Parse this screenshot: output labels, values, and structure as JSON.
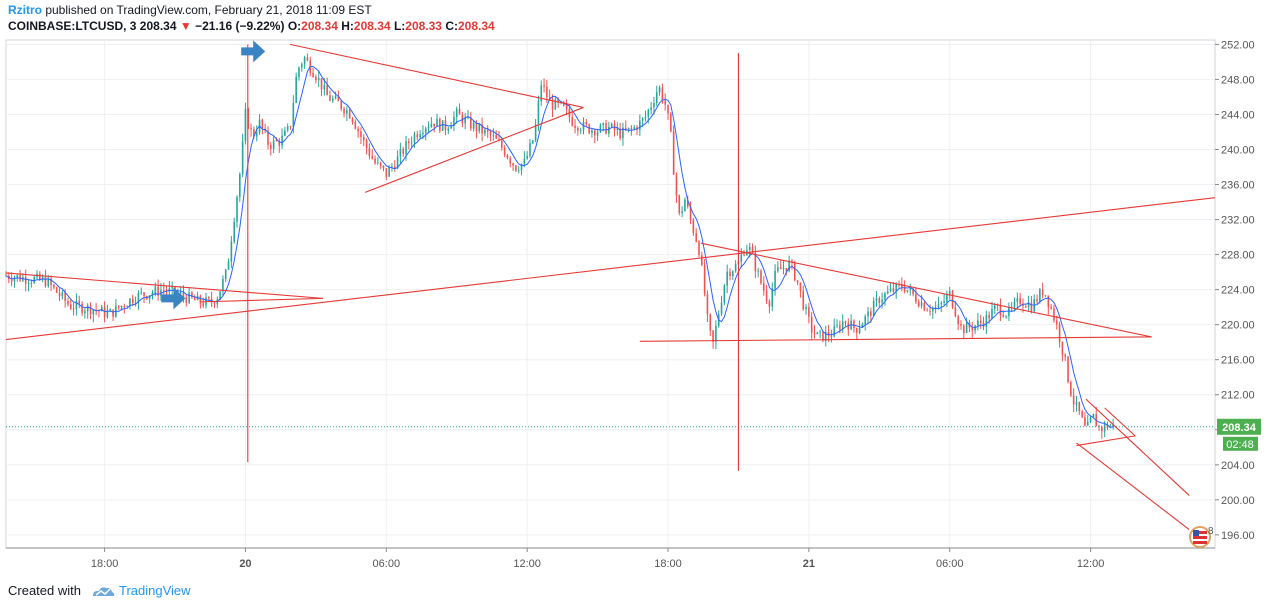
{
  "header": {
    "author": "Rzitro",
    "published_text": " published on TradingView.com, February 21, 2018 11:09 EST",
    "symbol": "COINBASE:LTCUSD, 3",
    "last": "208.34",
    "change_arrow": "▼",
    "change": "−21.16 (−9.22%)",
    "o_label": "O:",
    "o_value": "208.34",
    "h_label": "H:",
    "h_value": "208.34",
    "l_label": "L:",
    "l_value": "208.33",
    "c_label": "C:",
    "c_value": "208.34"
  },
  "footer": {
    "created_with": "Created with",
    "brand": "TradingView"
  },
  "colors": {
    "up": "#26a69a",
    "down": "#ef5350",
    "ma": "#2962ff",
    "drawing": "#e53935",
    "arrow": "#3b84c4",
    "price_badge": "#4caf50",
    "dotted": "#26a69a"
  },
  "chart_data": {
    "type": "candlestick",
    "symbol": "COINBASE:LTCUSD",
    "interval_minutes": 3,
    "yaxis": {
      "ticks": [
        "252.00",
        "248.00",
        "244.00",
        "240.00",
        "236.00",
        "232.00",
        "228.00",
        "224.00",
        "220.00",
        "216.00",
        "212.00",
        "208.00",
        "204.00",
        "200.00",
        "196.00"
      ],
      "range": [
        194.5,
        252.5
      ]
    },
    "xaxis": {
      "ticks": [
        {
          "label": "18:00",
          "h": 18
        },
        {
          "label": "20",
          "h": 24
        },
        {
          "label": "06:00",
          "h": 30
        },
        {
          "label": "12:00",
          "h": 36
        },
        {
          "label": "18:00",
          "h": 42
        },
        {
          "label": "21",
          "h": 48
        },
        {
          "label": "06:00",
          "h": 54
        },
        {
          "label": "12:00",
          "h": 60
        }
      ],
      "range_hours": [
        13.8,
        65.3
      ]
    },
    "current_price": "208.34",
    "countdown": "02:48",
    "price_path": [
      [
        13.8,
        225.6
      ],
      [
        15.5,
        225.0
      ],
      [
        16.5,
        222.2
      ],
      [
        17.5,
        221.8
      ],
      [
        18.2,
        221.2
      ],
      [
        19.3,
        223.2
      ],
      [
        20.5,
        224.0
      ],
      [
        21.3,
        223.3
      ],
      [
        22.0,
        222.6
      ],
      [
        22.5,
        222.5
      ],
      [
        22.8,
        223.2
      ],
      [
        23.2,
        226.0
      ],
      [
        23.5,
        232.0
      ],
      [
        23.8,
        238.0
      ],
      [
        24.0,
        244.0
      ],
      [
        24.3,
        241.5
      ],
      [
        24.6,
        243.0
      ],
      [
        25.0,
        240.5
      ],
      [
        25.5,
        241.0
      ],
      [
        25.9,
        242.5
      ],
      [
        26.2,
        249.0
      ],
      [
        26.5,
        250.5
      ],
      [
        27.0,
        248.5
      ],
      [
        27.5,
        246.0
      ],
      [
        28.0,
        245.2
      ],
      [
        28.5,
        244.0
      ],
      [
        29.0,
        241.0
      ],
      [
        29.5,
        238.5
      ],
      [
        30.0,
        237.2
      ],
      [
        30.5,
        239.0
      ],
      [
        31.0,
        241.0
      ],
      [
        31.5,
        242.5
      ],
      [
        32.0,
        243.2
      ],
      [
        32.5,
        242.5
      ],
      [
        33.0,
        244.0
      ],
      [
        33.5,
        243.0
      ],
      [
        34.0,
        242.2
      ],
      [
        34.5,
        241.5
      ],
      [
        35.0,
        240.0
      ],
      [
        35.5,
        238.0
      ],
      [
        35.9,
        238.5
      ],
      [
        36.3,
        241.5
      ],
      [
        36.6,
        247.5
      ],
      [
        37.0,
        245.2
      ],
      [
        37.5,
        244.8
      ],
      [
        38.0,
        243.0
      ],
      [
        38.5,
        242.5
      ],
      [
        39.0,
        242.2
      ],
      [
        39.5,
        242.5
      ],
      [
        40.0,
        241.8
      ],
      [
        40.5,
        242.3
      ],
      [
        41.0,
        243.5
      ],
      [
        41.3,
        245.2
      ],
      [
        41.6,
        247.2
      ],
      [
        41.9,
        245.0
      ],
      [
        42.1,
        242.0
      ],
      [
        42.3,
        236.0
      ],
      [
        42.5,
        232.0
      ],
      [
        42.7,
        234.5
      ],
      [
        43.0,
        231.5
      ],
      [
        43.3,
        229.0
      ],
      [
        43.5,
        225.0
      ],
      [
        43.7,
        220.0
      ],
      [
        43.9,
        217.5
      ],
      [
        44.2,
        222.0
      ],
      [
        44.5,
        226.0
      ],
      [
        44.8,
        226.5
      ],
      [
        45.0,
        227.0
      ],
      [
        45.3,
        229.0
      ],
      [
        45.5,
        228.5
      ],
      [
        45.8,
        226.0
      ],
      [
        46.0,
        224.5
      ],
      [
        46.3,
        222.5
      ],
      [
        46.6,
        226.0
      ],
      [
        46.9,
        226.5
      ],
      [
        47.2,
        227.0
      ],
      [
        47.5,
        225.0
      ],
      [
        47.8,
        222.0
      ],
      [
        48.1,
        219.5
      ],
      [
        48.4,
        218.5
      ],
      [
        48.7,
        218.8
      ],
      [
        49.0,
        219.0
      ],
      [
        49.5,
        220.5
      ],
      [
        50.0,
        219.5
      ],
      [
        50.5,
        221.0
      ],
      [
        51.0,
        223.0
      ],
      [
        51.5,
        223.8
      ],
      [
        52.0,
        224.5
      ],
      [
        52.5,
        223.2
      ],
      [
        53.0,
        222.0
      ],
      [
        53.5,
        221.8
      ],
      [
        54.0,
        223.5
      ],
      [
        54.5,
        219.5
      ],
      [
        55.0,
        219.8
      ],
      [
        55.5,
        220.5
      ],
      [
        56.0,
        222.0
      ],
      [
        56.5,
        221.2
      ],
      [
        57.0,
        222.8
      ],
      [
        57.5,
        222.2
      ],
      [
        58.0,
        224.0
      ],
      [
        58.3,
        222.0
      ],
      [
        58.6,
        219.5
      ],
      [
        58.9,
        216.0
      ],
      [
        59.1,
        213.0
      ],
      [
        59.3,
        211.0
      ],
      [
        59.5,
        210.0
      ],
      [
        59.8,
        207.8
      ],
      [
        60.1,
        209.5
      ],
      [
        60.4,
        208.0
      ],
      [
        60.7,
        208.5
      ],
      [
        61.0,
        208.34
      ]
    ],
    "drawings": [
      {
        "name": "upper-triangle-top",
        "from": [
          25.9,
          252.0
        ],
        "to": [
          38.4,
          244.8
        ]
      },
      {
        "name": "upper-triangle-bottom",
        "from": [
          29.1,
          235.1
        ],
        "to": [
          38.4,
          244.8
        ]
      },
      {
        "name": "left-triangle-top",
        "from": [
          13.8,
          225.9
        ],
        "to": [
          27.3,
          223.0
        ]
      },
      {
        "name": "left-triangle-bottom",
        "from": [
          22.1,
          222.6
        ],
        "to": [
          27.3,
          223.0
        ]
      },
      {
        "name": "long-trend-line",
        "from": [
          13.8,
          218.3
        ],
        "to": [
          65.3,
          234.5
        ]
      },
      {
        "name": "vline-20",
        "from": [
          24.1,
          204.3
        ],
        "to": [
          24.1,
          252.0
        ]
      },
      {
        "name": "vline-21",
        "from": [
          45.0,
          203.3
        ],
        "to": [
          45.0,
          251.0
        ]
      },
      {
        "name": "mid-triangle-top",
        "from": [
          43.4,
          229.3
        ],
        "to": [
          62.6,
          218.6
        ]
      },
      {
        "name": "mid-triangle-base",
        "from": [
          40.8,
          218.1
        ],
        "to": [
          62.6,
          218.6
        ]
      },
      {
        "name": "channel-upper",
        "from": [
          59.8,
          211.5
        ],
        "to": [
          64.2,
          200.5
        ]
      },
      {
        "name": "channel-lower",
        "from": [
          59.4,
          206.5
        ],
        "to": [
          64.2,
          196.6
        ]
      },
      {
        "name": "small-wedge-a",
        "from": [
          59.4,
          206.2
        ],
        "to": [
          61.9,
          207.3
        ]
      },
      {
        "name": "small-wedge-b",
        "from": [
          60.6,
          210.5
        ],
        "to": [
          61.9,
          207.3
        ]
      }
    ],
    "markers": [
      {
        "name": "arrow-marker-left",
        "at": [
          21.1,
          223.0
        ]
      },
      {
        "name": "arrow-marker-top",
        "at": [
          24.5,
          251.2
        ]
      }
    ],
    "grid": true
  }
}
